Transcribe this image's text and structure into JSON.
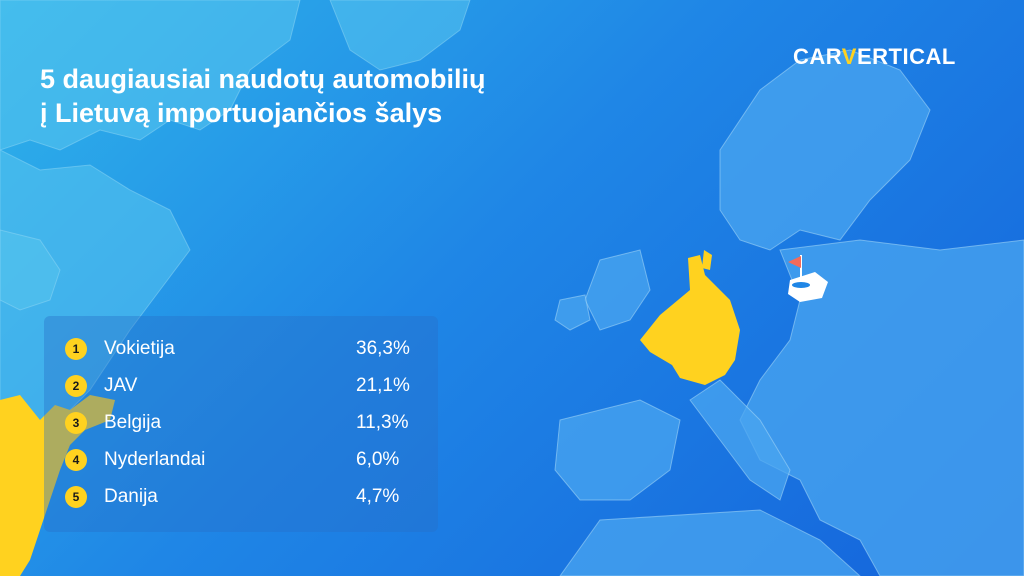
{
  "header": {
    "title_line1": "5 daugiausiai naudotų automobilių",
    "title_line2": "į Lietuvą importuojančios šalys"
  },
  "logo": {
    "part1": "CAR",
    "part2": "V",
    "part3": "ERTICAL"
  },
  "ranking": [
    {
      "rank": "1",
      "country": "Vokietija",
      "value": "36,3%"
    },
    {
      "rank": "2",
      "country": "JAV",
      "value": "21,1%"
    },
    {
      "rank": "3",
      "country": "Belgija",
      "value": "11,3%"
    },
    {
      "rank": "4",
      "country": "Nyderlandai",
      "value": "6,0%"
    },
    {
      "rank": "5",
      "country": "Danija",
      "value": "4,7%"
    }
  ],
  "colors": {
    "background_light": "#2fb4ea",
    "background_dark": "#1463db",
    "highlight": "#ffd21f",
    "flag": "#f26b5b",
    "text": "#ffffff"
  }
}
